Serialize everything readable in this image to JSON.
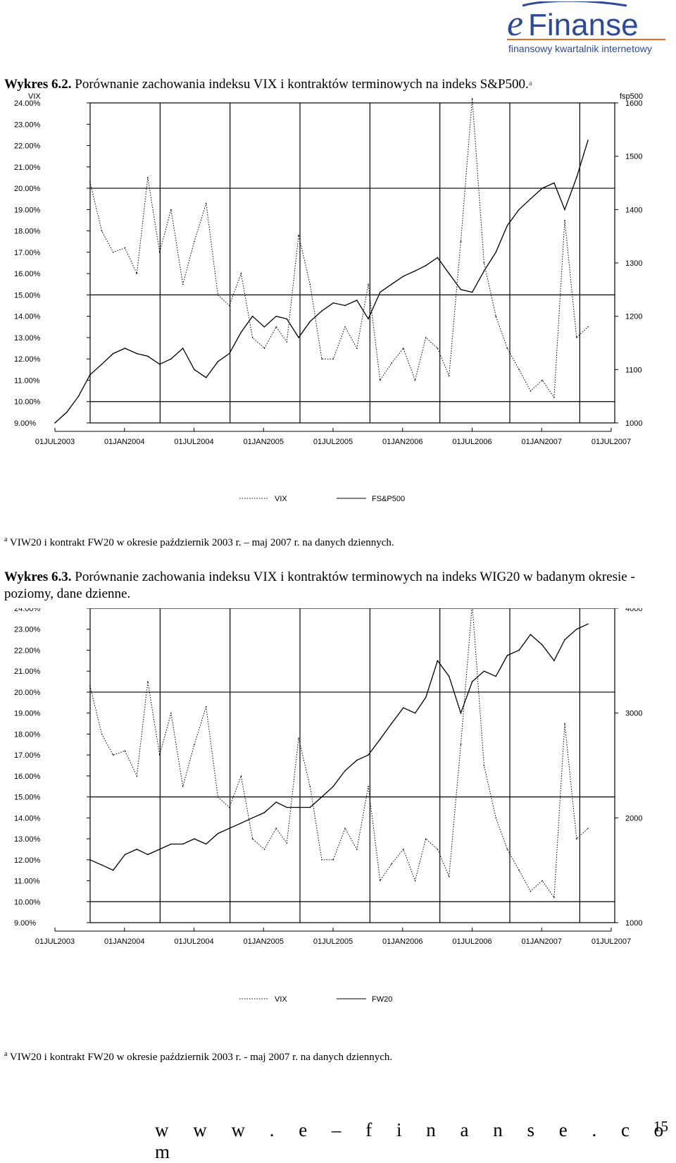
{
  "logo": {
    "brand_e": "e",
    "brand_rest": "Finanse",
    "tagline": "finansowy kwartalnik internetowy"
  },
  "figure1": {
    "caption_label": "Wykres 6.2.",
    "caption_text": " Porównanie zachowania indeksu VIX i kontraktów terminowych na indeks S&P500.",
    "caption_sup": "a",
    "note_sup": "a",
    "note_text": " VIW20 i kontrakt FW20 w okresie  październik 2003 r. – maj 2007 r. na danych dziennych."
  },
  "figure2": {
    "caption_label": "Wykres 6.3.",
    "caption_text": " Porównanie zachowania indeksu VIX i kontraktów terminowych na indeks WIG20 w badanym okresie - poziomy, dane dzienne.",
    "note_sup": "a",
    "note_text": " VIW20 i kontrakt FW20 w okresie październik 2003 r. - maj 2007 r. na danych dziennych."
  },
  "footer": {
    "website": "w w w . e – f i n a n s e . c o m",
    "page": "15"
  },
  "chart_data": [
    {
      "type": "line",
      "left_axis_title": "VIX",
      "right_axis_title": "fsp500",
      "left_ticks": [
        "24.00%",
        "23.00%",
        "22.00%",
        "21.00%",
        "20.00%",
        "19.00%",
        "18.00%",
        "17.00%",
        "16.00%",
        "15.00%",
        "14.00%",
        "13.00%",
        "12.00%",
        "11.00%",
        "10.00%",
        "9.00%"
      ],
      "right_ticks": [
        "1600",
        "1500",
        "1400",
        "1300",
        "1200",
        "1100",
        "1000"
      ],
      "x_ticks": [
        "01JUL2003",
        "01JAN2004",
        "01JUL2004",
        "01JAN2005",
        "01JUL2005",
        "01JAN2006",
        "01JUL2006",
        "01JAN2007",
        "01JUL2007"
      ],
      "ylim_left": [
        9,
        24
      ],
      "ylim_right": [
        1000,
        1600
      ],
      "x_range": [
        "2003-07-01",
        "2007-07-01"
      ],
      "grid": true,
      "legend": [
        {
          "name": "VIX",
          "style": "dotted"
        },
        {
          "name": "FS&P500",
          "style": "solid"
        }
      ],
      "legend_position": "bottom",
      "series": [
        {
          "name": "VIX",
          "axis": "left",
          "x": [
            "2003-10-01",
            "2003-11-01",
            "2003-12-01",
            "2004-01-01",
            "2004-02-01",
            "2004-03-01",
            "2004-04-01",
            "2004-05-01",
            "2004-06-01",
            "2004-07-01",
            "2004-08-01",
            "2004-09-01",
            "2004-10-01",
            "2004-11-01",
            "2004-12-01",
            "2005-01-01",
            "2005-02-01",
            "2005-03-01",
            "2005-04-01",
            "2005-05-01",
            "2005-06-01",
            "2005-07-01",
            "2005-08-01",
            "2005-09-01",
            "2005-10-01",
            "2005-11-01",
            "2005-12-01",
            "2006-01-01",
            "2006-02-01",
            "2006-03-01",
            "2006-04-01",
            "2006-05-01",
            "2006-06-01",
            "2006-07-01",
            "2006-08-01",
            "2006-09-01",
            "2006-10-01",
            "2006-11-01",
            "2006-12-01",
            "2007-01-01",
            "2007-02-01",
            "2007-03-01",
            "2007-04-01",
            "2007-05-01"
          ],
          "y": [
            20.3,
            18.0,
            17.0,
            17.2,
            16.0,
            20.5,
            17.0,
            19.0,
            15.5,
            17.5,
            19.3,
            15.0,
            14.5,
            16.0,
            13.0,
            12.5,
            13.5,
            12.8,
            17.8,
            15.5,
            12.0,
            12.0,
            13.5,
            12.5,
            15.5,
            11.0,
            11.8,
            12.5,
            11.0,
            13.0,
            12.5,
            11.2,
            17.5,
            24.2,
            16.5,
            14.0,
            12.5,
            11.5,
            10.5,
            11.0,
            10.2,
            18.5,
            13.0,
            13.5
          ]
        },
        {
          "name": "FS&P500",
          "axis": "right",
          "x": [
            "2003-07-01",
            "2003-08-01",
            "2003-09-01",
            "2003-10-01",
            "2003-11-01",
            "2003-12-01",
            "2004-01-01",
            "2004-02-01",
            "2004-03-01",
            "2004-04-01",
            "2004-05-01",
            "2004-06-01",
            "2004-07-01",
            "2004-08-01",
            "2004-09-01",
            "2004-10-01",
            "2004-11-01",
            "2004-12-01",
            "2005-01-01",
            "2005-02-01",
            "2005-03-01",
            "2005-04-01",
            "2005-05-01",
            "2005-06-01",
            "2005-07-01",
            "2005-08-01",
            "2005-09-01",
            "2005-10-01",
            "2005-11-01",
            "2005-12-01",
            "2006-01-01",
            "2006-02-01",
            "2006-03-01",
            "2006-04-01",
            "2006-05-01",
            "2006-06-01",
            "2006-07-01",
            "2006-08-01",
            "2006-09-01",
            "2006-10-01",
            "2006-11-01",
            "2006-12-01",
            "2007-01-01",
            "2007-02-01",
            "2007-03-01",
            "2007-04-01",
            "2007-05-01"
          ],
          "y": [
            1000,
            1020,
            1050,
            1090,
            1110,
            1130,
            1140,
            1130,
            1125,
            1110,
            1120,
            1140,
            1100,
            1085,
            1115,
            1130,
            1170,
            1200,
            1180,
            1200,
            1195,
            1160,
            1190,
            1210,
            1225,
            1220,
            1230,
            1195,
            1245,
            1260,
            1275,
            1285,
            1295,
            1310,
            1280,
            1250,
            1245,
            1285,
            1320,
            1370,
            1400,
            1420,
            1440,
            1450,
            1400,
            1460,
            1530
          ]
        }
      ]
    },
    {
      "type": "line",
      "left_axis_title": "VIX",
      "right_axis_title": "FW20",
      "left_ticks": [
        "24.00%",
        "23.00%",
        "22.00%",
        "21.00%",
        "20.00%",
        "19.00%",
        "18.00%",
        "17.00%",
        "16.00%",
        "15.00%",
        "14.00%",
        "13.00%",
        "12.00%",
        "11.00%",
        "10.00%",
        "9.00%"
      ],
      "right_ticks": [
        "4000",
        "3000",
        "2000",
        "1000"
      ],
      "x_ticks": [
        "01JUL2003",
        "01JAN2004",
        "01JUL2004",
        "01JAN2005",
        "01JUL2005",
        "01JAN2006",
        "01JUL2006",
        "01JAN2007",
        "01JUL2007"
      ],
      "ylim_left": [
        9,
        24
      ],
      "ylim_right": [
        1000,
        4000
      ],
      "x_range": [
        "2003-07-01",
        "2007-07-01"
      ],
      "grid": true,
      "legend": [
        {
          "name": "VIX",
          "style": "dotted"
        },
        {
          "name": "FW20",
          "style": "solid"
        }
      ],
      "legend_position": "bottom",
      "series": [
        {
          "name": "VIX",
          "axis": "left",
          "x": [
            "2003-10-01",
            "2003-11-01",
            "2003-12-01",
            "2004-01-01",
            "2004-02-01",
            "2004-03-01",
            "2004-04-01",
            "2004-05-01",
            "2004-06-01",
            "2004-07-01",
            "2004-08-01",
            "2004-09-01",
            "2004-10-01",
            "2004-11-01",
            "2004-12-01",
            "2005-01-01",
            "2005-02-01",
            "2005-03-01",
            "2005-04-01",
            "2005-05-01",
            "2005-06-01",
            "2005-07-01",
            "2005-08-01",
            "2005-09-01",
            "2005-10-01",
            "2005-11-01",
            "2005-12-01",
            "2006-01-01",
            "2006-02-01",
            "2006-03-01",
            "2006-04-01",
            "2006-05-01",
            "2006-06-01",
            "2006-07-01",
            "2006-08-01",
            "2006-09-01",
            "2006-10-01",
            "2006-11-01",
            "2006-12-01",
            "2007-01-01",
            "2007-02-01",
            "2007-03-01",
            "2007-04-01",
            "2007-05-01"
          ],
          "y": [
            20.3,
            18.0,
            17.0,
            17.2,
            16.0,
            20.5,
            17.0,
            19.0,
            15.5,
            17.5,
            19.3,
            15.0,
            14.5,
            16.0,
            13.0,
            12.5,
            13.5,
            12.8,
            17.8,
            15.5,
            12.0,
            12.0,
            13.5,
            12.5,
            15.5,
            11.0,
            11.8,
            12.5,
            11.0,
            13.0,
            12.5,
            11.2,
            17.5,
            24.2,
            16.5,
            14.0,
            12.5,
            11.5,
            10.5,
            11.0,
            10.2,
            18.5,
            13.0,
            13.5
          ]
        },
        {
          "name": "FW20",
          "axis": "right",
          "x": [
            "2003-10-01",
            "2003-11-01",
            "2003-12-01",
            "2004-01-01",
            "2004-02-01",
            "2004-03-01",
            "2004-04-01",
            "2004-05-01",
            "2004-06-01",
            "2004-07-01",
            "2004-08-01",
            "2004-09-01",
            "2004-10-01",
            "2004-11-01",
            "2004-12-01",
            "2005-01-01",
            "2005-02-01",
            "2005-03-01",
            "2005-04-01",
            "2005-05-01",
            "2005-06-01",
            "2005-07-01",
            "2005-08-01",
            "2005-09-01",
            "2005-10-01",
            "2005-11-01",
            "2005-12-01",
            "2006-01-01",
            "2006-02-01",
            "2006-03-01",
            "2006-04-01",
            "2006-05-01",
            "2006-06-01",
            "2006-07-01",
            "2006-08-01",
            "2006-09-01",
            "2006-10-01",
            "2006-11-01",
            "2006-12-01",
            "2007-01-01",
            "2007-02-01",
            "2007-03-01",
            "2007-04-01",
            "2007-05-01"
          ],
          "y": [
            1600,
            1550,
            1500,
            1650,
            1700,
            1650,
            1700,
            1750,
            1750,
            1800,
            1750,
            1850,
            1900,
            1950,
            2000,
            2050,
            2150,
            2100,
            2100,
            2100,
            2200,
            2300,
            2450,
            2550,
            2600,
            2750,
            2900,
            3050,
            3000,
            3150,
            3500,
            3350,
            3000,
            3300,
            3400,
            3350,
            3550,
            3600,
            3750,
            3650,
            3500,
            3700,
            3800,
            3850
          ]
        }
      ]
    }
  ]
}
